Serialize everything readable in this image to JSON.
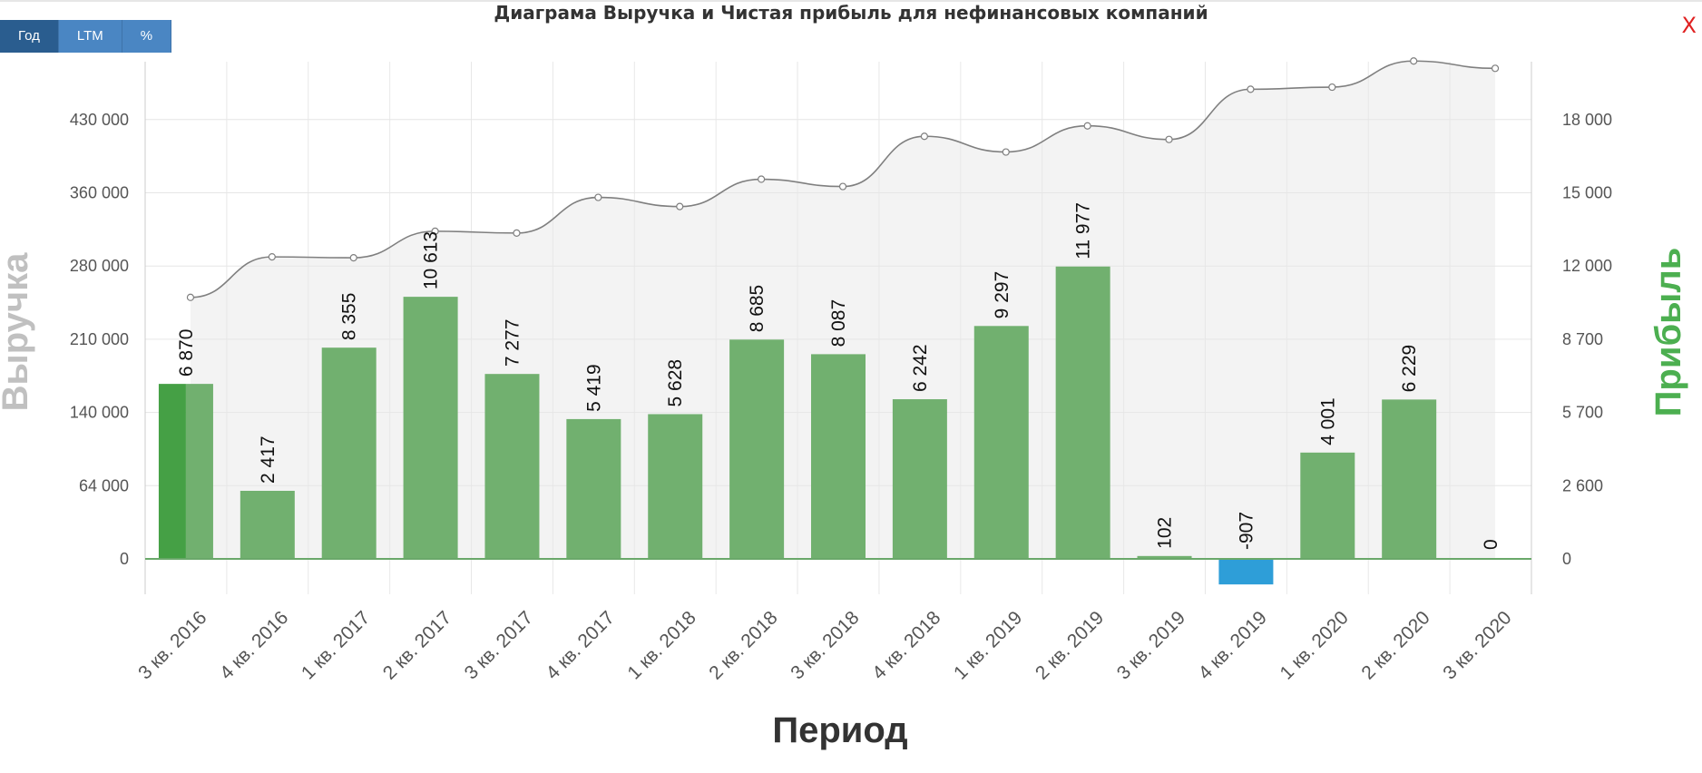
{
  "header": {
    "title": "Диаграма Выручка и Чистая прибыль для нефинансовых компаний",
    "buttons": [
      {
        "label": "Год",
        "active": true
      },
      {
        "label": "LTM",
        "active": false
      },
      {
        "label": "%",
        "active": false
      }
    ],
    "close_label": "X"
  },
  "colors": {
    "bar": "#71b06f",
    "bar_highlight": "#45a045",
    "bar_negative": "#2e9ed8",
    "line": "#7f7f7f",
    "area": "#f3f3f3",
    "ylabel_left": "#c0c0c0",
    "ylabel_right": "#4caf50"
  },
  "chart_data": {
    "type": "bar",
    "title": "Диаграма Выручка и Чистая прибыль для нефинансовых компаний",
    "xlabel": "Период",
    "ylabel": "Выручка",
    "ylabel_right": "Прибыль",
    "categories": [
      "3 кв. 2016",
      "4 кв. 2016",
      "1 кв. 2017",
      "2 кв. 2017",
      "3 кв. 2017",
      "4 кв. 2017",
      "1 кв. 2018",
      "2 кв. 2018",
      "3 кв. 2018",
      "4 кв. 2018",
      "1 кв. 2019",
      "2 кв. 2019",
      "3 кв. 2019",
      "4 кв. 2019",
      "1 кв. 2020",
      "2 кв. 2020",
      "3 кв. 2020"
    ],
    "y_left_ticks": [
      "0",
      "64 000",
      "140 000",
      "210 000",
      "280 000",
      "360 000",
      "430 000"
    ],
    "y_right_ticks": [
      "0",
      "2 600",
      "5 700",
      "8 700",
      "12 000",
      "15 000",
      "18 000"
    ],
    "series": [
      {
        "kind": "bar",
        "axis": "right",
        "values": [
          6870,
          2417,
          8355,
          10613,
          7277,
          5419,
          5628,
          8685,
          8087,
          6242,
          9297,
          11977,
          102,
          -907,
          4001,
          6229,
          0
        ],
        "labels": [
          "6 870",
          "2 417",
          "8 355",
          "10 613",
          "7 277",
          "5 419",
          "5 628",
          "8 685",
          "8 087",
          "6 242",
          "9 297",
          "11 977",
          "102",
          "-907",
          "4 001",
          "6 229",
          "0"
        ]
      },
      {
        "kind": "area-line",
        "axis": "left",
        "values": [
          250000,
          290000,
          289000,
          318000,
          316000,
          355000,
          345000,
          373000,
          366000,
          414000,
          399000,
          424000,
          411000,
          459000,
          461000,
          486000,
          479000
        ]
      }
    ],
    "grid": true
  }
}
